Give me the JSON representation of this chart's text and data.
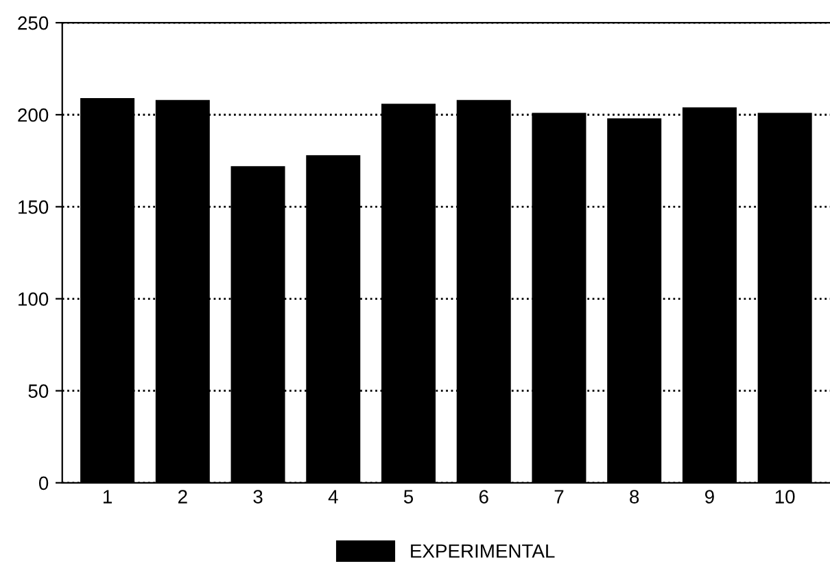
{
  "chart_data": {
    "type": "bar",
    "categories": [
      "1",
      "2",
      "3",
      "4",
      "5",
      "6",
      "7",
      "8",
      "9",
      "10"
    ],
    "series": [
      {
        "name": "EXPERIMENTAL",
        "color": "#000000",
        "values": [
          209,
          208,
          172,
          178,
          206,
          208,
          201,
          198,
          204,
          201
        ]
      }
    ],
    "ylim": [
      0,
      250
    ],
    "yticks": [
      0,
      50,
      100,
      150,
      200,
      250
    ],
    "grid": "y",
    "legend": "bottom"
  }
}
